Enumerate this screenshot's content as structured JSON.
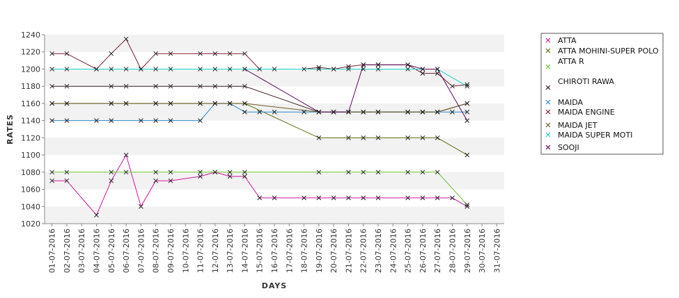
{
  "chart_data": {
    "type": "line",
    "xlabel": "DAYS",
    "ylabel": "RATES",
    "ylim": [
      1020,
      1240
    ],
    "ytick_step": 20,
    "grid": "horizontal alternating bands",
    "legend_position": "right",
    "marker": "x",
    "categories": [
      "01-07-2016",
      "02-07-2016",
      "03-07-2016",
      "04-07-2016",
      "05-07-2016",
      "06-07-2016",
      "07-07-2016",
      "08-07-2016",
      "09-07-2016",
      "10-07-2016",
      "11-07-2016",
      "12-07-2016",
      "13-07-2016",
      "14-07-2016",
      "15-07-2016",
      "16-07-2016",
      "17-07-2016",
      "18-07-2016",
      "19-07-2016",
      "20-07-2016",
      "21-07-2016",
      "22-07-2016",
      "23-07-2016",
      "24-07-2016",
      "25-07-2016",
      "26-07-2016",
      "27-07-2016",
      "28-07-2016",
      "29-07-2016",
      "30-07-2016",
      "31-07-2016"
    ],
    "series": [
      {
        "name": "ATTA",
        "color": "#d0149a",
        "points": [
          [
            "01-07-2016",
            1070
          ],
          [
            "02-07-2016",
            1070
          ],
          [
            "04-07-2016",
            1030
          ],
          [
            "05-07-2016",
            1070
          ],
          [
            "06-07-2016",
            1100
          ],
          [
            "07-07-2016",
            1040
          ],
          [
            "08-07-2016",
            1070
          ],
          [
            "09-07-2016",
            1070
          ],
          [
            "11-07-2016",
            1075
          ],
          [
            "12-07-2016",
            1080
          ],
          [
            "13-07-2016",
            1075
          ],
          [
            "14-07-2016",
            1075
          ],
          [
            "15-07-2016",
            1050
          ],
          [
            "16-07-2016",
            1050
          ],
          [
            "18-07-2016",
            1050
          ],
          [
            "19-07-2016",
            1050
          ],
          [
            "20-07-2016",
            1050
          ],
          [
            "21-07-2016",
            1050
          ],
          [
            "22-07-2016",
            1050
          ],
          [
            "23-07-2016",
            1050
          ],
          [
            "25-07-2016",
            1050
          ],
          [
            "26-07-2016",
            1050
          ],
          [
            "27-07-2016",
            1050
          ],
          [
            "28-07-2016",
            1050
          ],
          [
            "29-07-2016",
            1040
          ]
        ]
      },
      {
        "name": "ATTA MOHINI-SUPER POLO",
        "color": "#5b6e10",
        "points": [
          [
            "01-07-2016",
            1160
          ],
          [
            "02-07-2016",
            1160
          ],
          [
            "05-07-2016",
            1160
          ],
          [
            "06-07-2016",
            1160
          ],
          [
            "08-07-2016",
            1160
          ],
          [
            "09-07-2016",
            1160
          ],
          [
            "11-07-2016",
            1160
          ],
          [
            "12-07-2016",
            1160
          ],
          [
            "13-07-2016",
            1160
          ],
          [
            "14-07-2016",
            1160
          ],
          [
            "19-07-2016",
            1120
          ],
          [
            "21-07-2016",
            1120
          ],
          [
            "22-07-2016",
            1120
          ],
          [
            "23-07-2016",
            1120
          ],
          [
            "25-07-2016",
            1120
          ],
          [
            "26-07-2016",
            1120
          ],
          [
            "27-07-2016",
            1120
          ],
          [
            "29-07-2016",
            1100
          ]
        ]
      },
      {
        "name": "ATTA R",
        "color": "#6cc02a",
        "points": [
          [
            "01-07-2016",
            1080
          ],
          [
            "02-07-2016",
            1080
          ],
          [
            "05-07-2016",
            1080
          ],
          [
            "06-07-2016",
            1080
          ],
          [
            "08-07-2016",
            1080
          ],
          [
            "09-07-2016",
            1080
          ],
          [
            "11-07-2016",
            1080
          ],
          [
            "12-07-2016",
            1080
          ],
          [
            "13-07-2016",
            1080
          ],
          [
            "14-07-2016",
            1080
          ],
          [
            "19-07-2016",
            1080
          ],
          [
            "21-07-2016",
            1080
          ],
          [
            "22-07-2016",
            1080
          ],
          [
            "23-07-2016",
            1080
          ],
          [
            "25-07-2016",
            1080
          ],
          [
            "26-07-2016",
            1080
          ],
          [
            "27-07-2016",
            1080
          ],
          [
            "29-07-2016",
            1042
          ]
        ]
      },
      {
        "name": "CHIROTI RAWA",
        "color": "#3a1a1a",
        "points": [
          [
            "01-07-2016",
            1180
          ],
          [
            "02-07-2016",
            1180
          ],
          [
            "05-07-2016",
            1180
          ],
          [
            "06-07-2016",
            1180
          ],
          [
            "08-07-2016",
            1180
          ],
          [
            "09-07-2016",
            1180
          ],
          [
            "11-07-2016",
            1180
          ],
          [
            "12-07-2016",
            1180
          ],
          [
            "13-07-2016",
            1180
          ],
          [
            "14-07-2016",
            1180
          ],
          [
            "19-07-2016",
            1150
          ],
          [
            "20-07-2016",
            1150
          ],
          [
            "21-07-2016",
            1150
          ],
          [
            "22-07-2016",
            1150
          ],
          [
            "23-07-2016",
            1150
          ],
          [
            "25-07-2016",
            1150
          ],
          [
            "26-07-2016",
            1150
          ],
          [
            "27-07-2016",
            1150
          ],
          [
            "29-07-2016",
            1160
          ]
        ]
      },
      {
        "name": "MAIDA",
        "color": "#2f86c8",
        "points": [
          [
            "01-07-2016",
            1140
          ],
          [
            "02-07-2016",
            1140
          ],
          [
            "04-07-2016",
            1140
          ],
          [
            "05-07-2016",
            1140
          ],
          [
            "07-07-2016",
            1140
          ],
          [
            "08-07-2016",
            1140
          ],
          [
            "09-07-2016",
            1140
          ],
          [
            "11-07-2016",
            1140
          ],
          [
            "12-07-2016",
            1160
          ],
          [
            "13-07-2016",
            1160
          ],
          [
            "14-07-2016",
            1150
          ],
          [
            "15-07-2016",
            1150
          ],
          [
            "16-07-2016",
            1150
          ],
          [
            "18-07-2016",
            1150
          ],
          [
            "19-07-2016",
            1150
          ],
          [
            "20-07-2016",
            1150
          ],
          [
            "21-07-2016",
            1150
          ],
          [
            "22-07-2016",
            1150
          ],
          [
            "23-07-2016",
            1150
          ],
          [
            "25-07-2016",
            1150
          ],
          [
            "26-07-2016",
            1150
          ],
          [
            "27-07-2016",
            1150
          ],
          [
            "28-07-2016",
            1150
          ],
          [
            "29-07-2016",
            1150
          ]
        ]
      },
      {
        "name": "MAIDA ENGINE",
        "color": "#7a1c2c",
        "points": [
          [
            "01-07-2016",
            1218
          ],
          [
            "02-07-2016",
            1218
          ],
          [
            "04-07-2016",
            1200
          ],
          [
            "05-07-2016",
            1218
          ],
          [
            "06-07-2016",
            1235
          ],
          [
            "07-07-2016",
            1200
          ],
          [
            "08-07-2016",
            1218
          ],
          [
            "09-07-2016",
            1218
          ],
          [
            "11-07-2016",
            1218
          ],
          [
            "12-07-2016",
            1218
          ],
          [
            "13-07-2016",
            1218
          ],
          [
            "14-07-2016",
            1218
          ],
          [
            "15-07-2016",
            1200
          ],
          [
            "16-07-2016",
            1200
          ],
          [
            "18-07-2016",
            1200
          ],
          [
            "19-07-2016",
            1202
          ],
          [
            "20-07-2016",
            1200
          ],
          [
            "21-07-2016",
            1203
          ],
          [
            "22-07-2016",
            1205
          ],
          [
            "23-07-2016",
            1205
          ],
          [
            "25-07-2016",
            1205
          ],
          [
            "26-07-2016",
            1195
          ],
          [
            "27-07-2016",
            1195
          ],
          [
            "28-07-2016",
            1180
          ],
          [
            "29-07-2016",
            1182
          ]
        ]
      },
      {
        "name": "MAIDA JET",
        "color": "#6b5a28",
        "points": [
          [
            "01-07-2016",
            1160
          ],
          [
            "02-07-2016",
            1160
          ],
          [
            "05-07-2016",
            1160
          ],
          [
            "06-07-2016",
            1160
          ],
          [
            "08-07-2016",
            1160
          ],
          [
            "09-07-2016",
            1160
          ],
          [
            "11-07-2016",
            1160
          ],
          [
            "12-07-2016",
            1160
          ],
          [
            "13-07-2016",
            1160
          ],
          [
            "14-07-2016",
            1160
          ],
          [
            "19-07-2016",
            1150
          ],
          [
            "20-07-2016",
            1150
          ],
          [
            "21-07-2016",
            1150
          ],
          [
            "22-07-2016",
            1150
          ],
          [
            "23-07-2016",
            1150
          ],
          [
            "25-07-2016",
            1150
          ],
          [
            "26-07-2016",
            1150
          ],
          [
            "27-07-2016",
            1150
          ],
          [
            "29-07-2016",
            1160
          ]
        ]
      },
      {
        "name": "MAIDA SUPER MOTI",
        "color": "#18d0c8",
        "points": [
          [
            "01-07-2016",
            1200
          ],
          [
            "02-07-2016",
            1200
          ],
          [
            "04-07-2016",
            1200
          ],
          [
            "05-07-2016",
            1200
          ],
          [
            "06-07-2016",
            1200
          ],
          [
            "07-07-2016",
            1200
          ],
          [
            "08-07-2016",
            1200
          ],
          [
            "09-07-2016",
            1200
          ],
          [
            "11-07-2016",
            1200
          ],
          [
            "12-07-2016",
            1200
          ],
          [
            "13-07-2016",
            1200
          ],
          [
            "14-07-2016",
            1200
          ],
          [
            "19-07-2016",
            1200
          ],
          [
            "20-07-2016",
            1200
          ],
          [
            "21-07-2016",
            1200
          ],
          [
            "22-07-2016",
            1200
          ],
          [
            "23-07-2016",
            1200
          ],
          [
            "25-07-2016",
            1200
          ],
          [
            "26-07-2016",
            1200
          ],
          [
            "27-07-2016",
            1200
          ],
          [
            "29-07-2016",
            1180
          ]
        ]
      },
      {
        "name": "SOOJI",
        "color": "#5a0a5a",
        "points": [
          [
            "14-07-2016",
            1200
          ],
          [
            "19-07-2016",
            1150
          ],
          [
            "20-07-2016",
            1150
          ],
          [
            "21-07-2016",
            1150
          ],
          [
            "22-07-2016",
            1205
          ],
          [
            "23-07-2016",
            1205
          ],
          [
            "25-07-2016",
            1205
          ],
          [
            "26-07-2016",
            1200
          ],
          [
            "27-07-2016",
            1200
          ],
          [
            "29-07-2016",
            1140
          ]
        ]
      }
    ]
  }
}
